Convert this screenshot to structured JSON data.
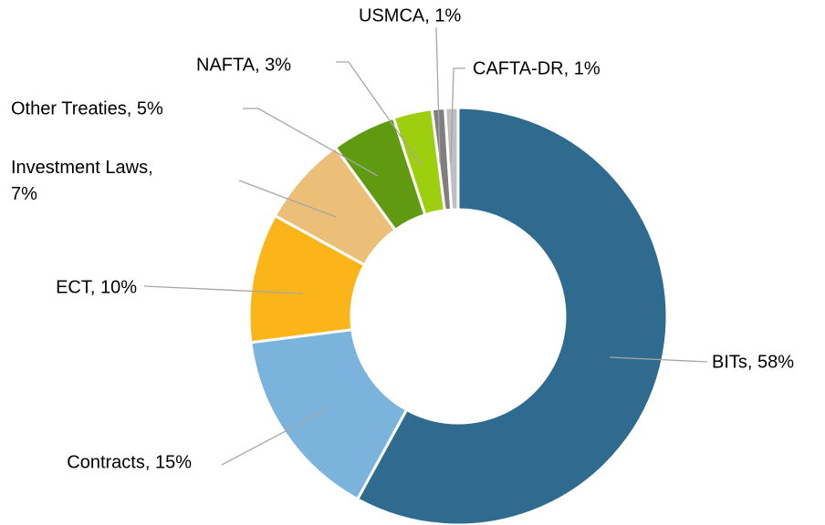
{
  "chart_data": {
    "type": "pie",
    "donut": true,
    "categories": [
      "BITs",
      "Contracts",
      "ECT",
      "Investment Laws",
      "Other Treaties",
      "NAFTA",
      "USMCA",
      "CAFTA-DR"
    ],
    "values": [
      58,
      15,
      10,
      7,
      5,
      3,
      1,
      1
    ],
    "value_labels": [
      "BITs, 58%",
      "Contracts, 15%",
      "ECT, 10%",
      "Investment Laws, 7%",
      "Other Treaties, 5%",
      "NAFTA, 3%",
      "USMCA, 1%",
      "CAFTA-DR, 1%"
    ],
    "colors": [
      "#2e6b8e",
      "#7ab4dc",
      "#fbb519",
      "#ecbf78",
      "#5f9a10",
      "#9dcf0f",
      "#7f7f7f",
      "#bfbfbf"
    ]
  }
}
